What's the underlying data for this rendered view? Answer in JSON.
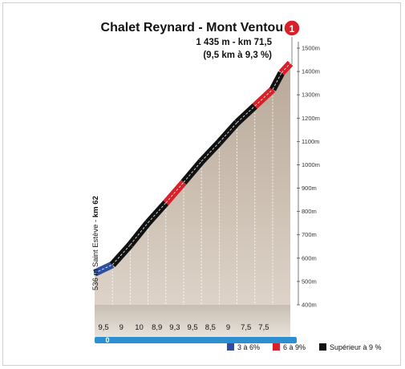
{
  "chart_data": {
    "type": "area",
    "title": "Chalet Reynard - Mont Ventoux",
    "summit_line": "1 435 m - km 71,5",
    "climb_line": "(9,5 km à 9,3 %)",
    "climb_marker": "1",
    "start_label_prefix": "536 m Saint Estève - ",
    "start_label_km": "km 62",
    "km_zero": "0",
    "yticks": [
      400,
      500,
      600,
      700,
      800,
      900,
      1000,
      1100,
      1200,
      1300,
      1400,
      1500
    ],
    "ytick_labels": [
      "400m",
      "500m",
      "600m",
      "700m",
      "800m",
      "900m",
      "1000m",
      "1100m",
      "1200m",
      "1300m",
      "1400m",
      "1500m"
    ],
    "ylim": [
      400,
      1500
    ],
    "segments": [
      {
        "label": "9,5",
        "value": 9.5,
        "start_alt": 536,
        "end_alt": 572,
        "color": "#2e4f9e"
      },
      {
        "label": "9",
        "value": 9.0,
        "start_alt": 572,
        "end_alt": 657,
        "color": "#111111"
      },
      {
        "label": "10",
        "value": 10.0,
        "start_alt": 657,
        "end_alt": 752,
        "color": "#111111"
      },
      {
        "label": "8,9",
        "value": 8.9,
        "start_alt": 752,
        "end_alt": 837,
        "color": "#111111"
      },
      {
        "label": "9,3",
        "value": 9.3,
        "start_alt": 837,
        "end_alt": 925,
        "color": "#d8202a"
      },
      {
        "label": "9,5",
        "value": 9.5,
        "start_alt": 925,
        "end_alt": 1015,
        "color": "#111111"
      },
      {
        "label": "8,5",
        "value": 8.5,
        "start_alt": 1015,
        "end_alt": 1096,
        "color": "#111111"
      },
      {
        "label": "9",
        "value": 9.0,
        "start_alt": 1096,
        "end_alt": 1181,
        "color": "#111111"
      },
      {
        "label": "7,5",
        "value": 7.5,
        "start_alt": 1181,
        "end_alt": 1252,
        "color": "#111111"
      },
      {
        "label": "7,5",
        "value": 7.5,
        "start_alt": 1252,
        "end_alt": 1323,
        "color": "#d8202a"
      },
      {
        "label": "",
        "value": 7.5,
        "start_alt": 1323,
        "end_alt": 1394,
        "color": "#111111"
      },
      {
        "label": "",
        "value": 7.5,
        "start_alt": 1394,
        "end_alt": 1435,
        "color": "#d8202a"
      }
    ],
    "legend": [
      {
        "label": "3 à 6%",
        "color": "#2e4f9e"
      },
      {
        "label": "6 à 9%",
        "color": "#d8202a"
      },
      {
        "label": "Supérieur à 9 %",
        "color": "#111111"
      }
    ],
    "colors": {
      "fill": "#cdbfb0",
      "blue": "#2e4f9e",
      "red": "#d8202a",
      "black": "#111111"
    }
  }
}
